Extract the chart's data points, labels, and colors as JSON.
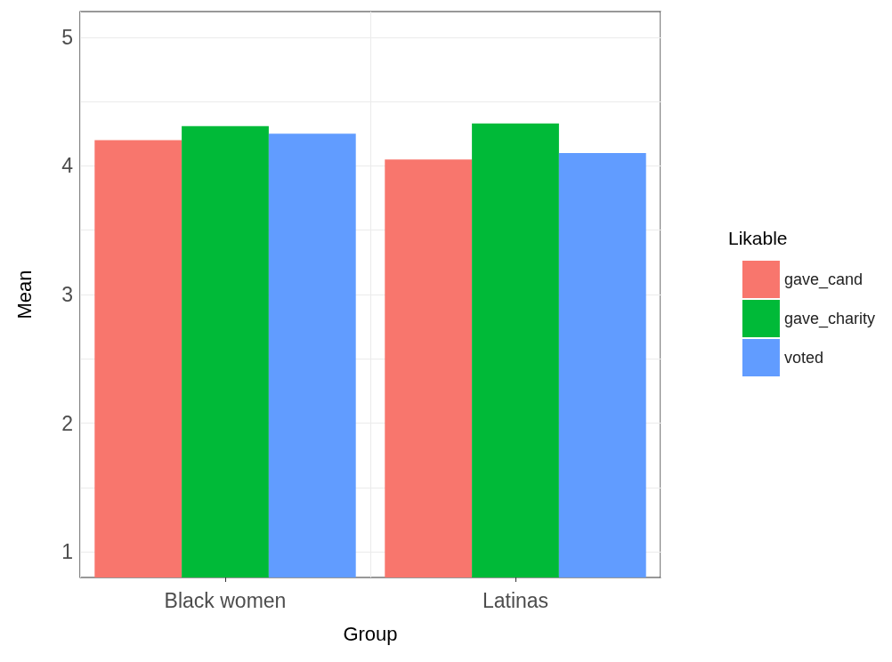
{
  "chart_data": {
    "type": "bar",
    "xlabel": "Group",
    "ylabel": "Mean",
    "legend_title": "Likable",
    "categories": [
      "Black women",
      "Latinas"
    ],
    "series": [
      {
        "name": "gave_cand",
        "color": "#f8766d",
        "values": [
          4.2,
          4.05
        ]
      },
      {
        "name": "gave_charity",
        "color": "#00ba38",
        "values": [
          4.31,
          4.33
        ]
      },
      {
        "name": "voted",
        "color": "#619cff",
        "values": [
          4.25,
          4.1
        ]
      }
    ],
    "ylim": [
      0.8,
      5.2
    ],
    "yticks": [
      1,
      {
        "value": 1.5,
        "label": null
      },
      2,
      {
        "value": 2.5,
        "label": null
      },
      3,
      {
        "value": 3.5,
        "label": null
      },
      4,
      {
        "value": 4.5,
        "label": null
      },
      5
    ],
    "grid": true,
    "legend": "right"
  }
}
